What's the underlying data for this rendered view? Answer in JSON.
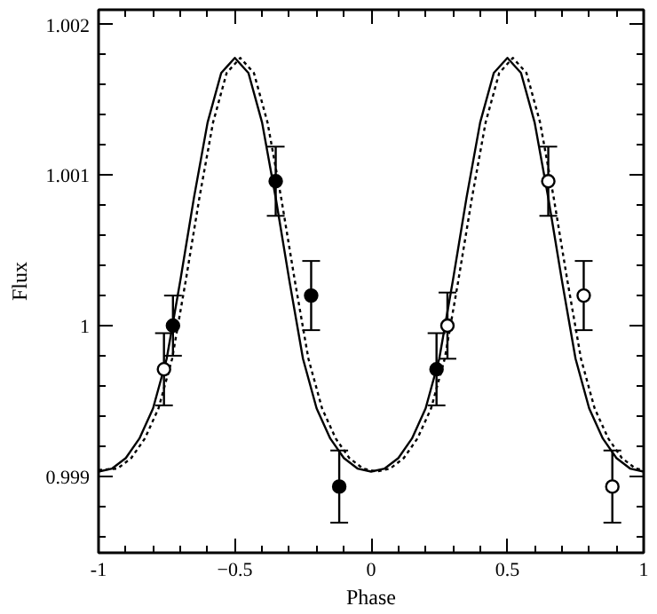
{
  "chart_data": {
    "type": "scatter",
    "xlabel": "Phase",
    "ylabel": "Flux",
    "xlim": [
      -1,
      1
    ],
    "ylim": [
      0.99849,
      1.0021
    ],
    "xticks": [
      -1,
      {
        "value": -0.9,
        "label": null
      },
      {
        "value": -0.8,
        "label": null
      },
      {
        "value": -0.7,
        "label": null
      },
      {
        "value": -0.6,
        "label": null
      },
      {
        "value": -0.5,
        "label": "−0.5"
      },
      {
        "value": -0.4,
        "label": null
      },
      {
        "value": -0.3,
        "label": null
      },
      {
        "value": -0.2,
        "label": null
      },
      {
        "value": -0.1,
        "label": null
      },
      0,
      {
        "value": 0.1,
        "label": null
      },
      {
        "value": 0.2,
        "label": null
      },
      {
        "value": 0.3,
        "label": null
      },
      {
        "value": 0.4,
        "label": null
      },
      0.5,
      {
        "value": 0.6,
        "label": null
      },
      {
        "value": 0.7,
        "label": null
      },
      {
        "value": 0.8,
        "label": null
      },
      {
        "value": 0.9,
        "label": null
      },
      1
    ],
    "yticks": [
      {
        "value": 0.9986,
        "label": null
      },
      {
        "value": 0.9988,
        "label": null
      },
      0.999,
      {
        "value": 0.9992,
        "label": null
      },
      {
        "value": 0.9994,
        "label": null
      },
      {
        "value": 0.9996,
        "label": null
      },
      {
        "value": 0.9998,
        "label": null
      },
      {
        "value": 1,
        "label": "1"
      },
      {
        "value": 1.0002,
        "label": null
      },
      {
        "value": 1.0004,
        "label": null
      },
      {
        "value": 1.0006,
        "label": null
      },
      {
        "value": 1.0008,
        "label": null
      },
      1.001,
      {
        "value": 1.0012,
        "label": null
      },
      {
        "value": 1.0014,
        "label": null
      },
      {
        "value": 1.0016,
        "label": null
      },
      {
        "value": 1.0018,
        "label": null
      },
      1.002
    ],
    "grid": false,
    "series": [
      {
        "type": "line",
        "color": "#000000",
        "line_style": "solid",
        "marker": "none",
        "x": [
          -1,
          -0.95,
          -0.9,
          -0.85,
          -0.8,
          -0.75,
          -0.7,
          -0.65,
          -0.6,
          -0.55,
          -0.5,
          -0.45,
          -0.4,
          -0.35,
          -0.3,
          -0.25,
          -0.2,
          -0.15,
          -0.1,
          -0.05,
          0,
          0.05,
          0.1,
          0.15,
          0.2,
          0.25,
          0.3,
          0.35,
          0.4,
          0.45,
          0.5,
          0.55,
          0.6,
          0.65,
          0.7,
          0.75,
          0.8,
          0.85,
          0.9,
          0.95,
          1
        ],
        "values": [
          0.99903,
          0.99905,
          0.99912,
          0.99925,
          0.99945,
          0.99978,
          1.0003,
          1.00085,
          1.00135,
          1.00168,
          1.00178,
          1.00168,
          1.00135,
          1.00085,
          1.0003,
          0.99978,
          0.99945,
          0.99925,
          0.99912,
          0.99905,
          0.99903,
          0.99905,
          0.99912,
          0.99925,
          0.99945,
          0.99978,
          1.0003,
          1.00085,
          1.00135,
          1.00168,
          1.00178,
          1.00168,
          1.00135,
          1.00085,
          1.0003,
          0.99978,
          0.99945,
          0.99925,
          0.99912,
          0.99905,
          0.99903
        ]
      },
      {
        "type": "line",
        "color": "#000000",
        "line_style": "dotted",
        "marker": "none",
        "x": [
          -1,
          -0.93,
          -0.88,
          -0.83,
          -0.78,
          -0.73,
          -0.68,
          -0.63,
          -0.58,
          -0.53,
          -0.48,
          -0.43,
          -0.38,
          -0.33,
          -0.28,
          -0.23,
          -0.18,
          -0.13,
          -0.08,
          -0.03,
          0.02,
          0.07,
          0.12,
          0.17,
          0.22,
          0.27,
          0.32,
          0.37,
          0.42,
          0.47,
          0.52,
          0.57,
          0.62,
          0.67,
          0.72,
          0.77,
          0.82,
          0.87,
          0.92,
          0.97,
          1
        ],
        "values": [
          0.99904,
          0.99905,
          0.99912,
          0.99925,
          0.99945,
          0.99978,
          1.0003,
          1.00085,
          1.00135,
          1.00168,
          1.00178,
          1.00168,
          1.00135,
          1.00085,
          1.0003,
          0.99978,
          0.99945,
          0.99925,
          0.99912,
          0.99905,
          0.99903,
          0.99905,
          0.99912,
          0.99925,
          0.99945,
          0.99978,
          1.0003,
          1.00085,
          1.00135,
          1.00168,
          1.00178,
          1.00168,
          1.00135,
          1.00085,
          1.0003,
          0.99978,
          0.99945,
          0.99925,
          0.99912,
          0.99905,
          0.99904
        ]
      },
      {
        "color": "#000000",
        "marker": "circle",
        "x": [
          -0.727,
          -0.35,
          -0.22,
          -0.117,
          0.24
        ],
        "values": [
          1.0,
          1.00096,
          1.0002,
          0.99893,
          0.99971
        ],
        "errors": [
          0.0002,
          0.00023,
          0.00023,
          0.00024,
          0.00024
        ]
      },
      {
        "color": "#000000",
        "marker": "circle_open",
        "x": [
          -0.76,
          0.28,
          0.65,
          0.78,
          0.885
        ],
        "values": [
          0.99971,
          1.0,
          1.00096,
          1.0002,
          0.99893
        ],
        "errors": [
          0.00024,
          0.00022,
          0.00023,
          0.00023,
          0.00024
        ]
      }
    ]
  }
}
